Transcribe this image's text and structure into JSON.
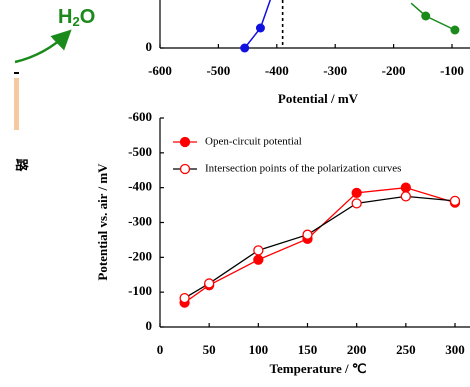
{
  "side_text": {
    "h": "H",
    "sub": "2",
    "o": "O",
    "char": "路"
  },
  "chart_data": [
    {
      "type": "line",
      "xlabel": "Potential / mV",
      "xlim": [
        -600,
        -100
      ],
      "xticks": [
        -600,
        -500,
        -400,
        -300,
        -200,
        -100
      ],
      "ylim": [
        0,
        1
      ],
      "yticks": [
        0
      ],
      "reference_x": -390,
      "series": [
        {
          "color": "#1010e0",
          "x": [
            -455,
            -428,
            -410
          ],
          "values": [
            0,
            0.5,
            1.25
          ]
        },
        {
          "color": "#1a8a1a",
          "x": [
            -170,
            -145,
            -95
          ],
          "values": [
            1.12,
            0.8,
            0.45
          ]
        }
      ]
    },
    {
      "type": "line",
      "xlabel": "Temperature /   ℃",
      "ylabel": "Potential vs. air / mV",
      "xlim": [
        0,
        300
      ],
      "xticks": [
        0,
        50,
        100,
        150,
        200,
        250,
        300
      ],
      "ylim": [
        0,
        -600
      ],
      "yticks": [
        0,
        -100,
        -200,
        -300,
        -400,
        -500,
        -600
      ],
      "legend": "upper left",
      "x": [
        25,
        50,
        100,
        150,
        200,
        250,
        300
      ],
      "series": [
        {
          "name": "Open-circuit potential",
          "color": "#ff0000",
          "marker": "filled",
          "values": [
            -70,
            -120,
            -193,
            -253,
            -385,
            -400,
            -357
          ]
        },
        {
          "name": "Intersection points of the polarization curves",
          "color": "#000000",
          "markercolor": "#ff0000",
          "marker": "open",
          "values": [
            -83,
            -125,
            -220,
            -265,
            -355,
            -375,
            -362
          ]
        }
      ]
    }
  ]
}
